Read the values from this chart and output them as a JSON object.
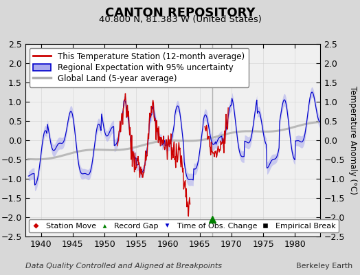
{
  "title": "CANTON REPOSITORY",
  "subtitle": "40.800 N, 81.383 W (United States)",
  "ylabel": "Temperature Anomaly (°C)",
  "xlabel_note": "Data Quality Controlled and Aligned at Breakpoints",
  "credit": "Berkeley Earth",
  "xlim": [
    1937.5,
    1984
  ],
  "ylim": [
    -2.5,
    2.5
  ],
  "yticks": [
    -2.5,
    -2,
    -1.5,
    -1,
    -0.5,
    0,
    0.5,
    1,
    1.5,
    2,
    2.5
  ],
  "xticks": [
    1940,
    1945,
    1950,
    1955,
    1960,
    1965,
    1970,
    1975,
    1980
  ],
  "bg_color": "#d8d8d8",
  "plot_bg_color": "#f0f0f0",
  "blue_line_color": "#0000cc",
  "blue_fill_color": "#aaaaee",
  "red_line_color": "#cc0000",
  "gray_line_color": "#b0b0b0",
  "gray_vert_color": "#aaaaaa",
  "record_gap_x": 1967.0,
  "record_gap_vert_x": 1967.0,
  "title_fontsize": 13,
  "subtitle_fontsize": 9.5,
  "tick_fontsize": 9,
  "legend_fontsize": 8.5,
  "note_fontsize": 8
}
